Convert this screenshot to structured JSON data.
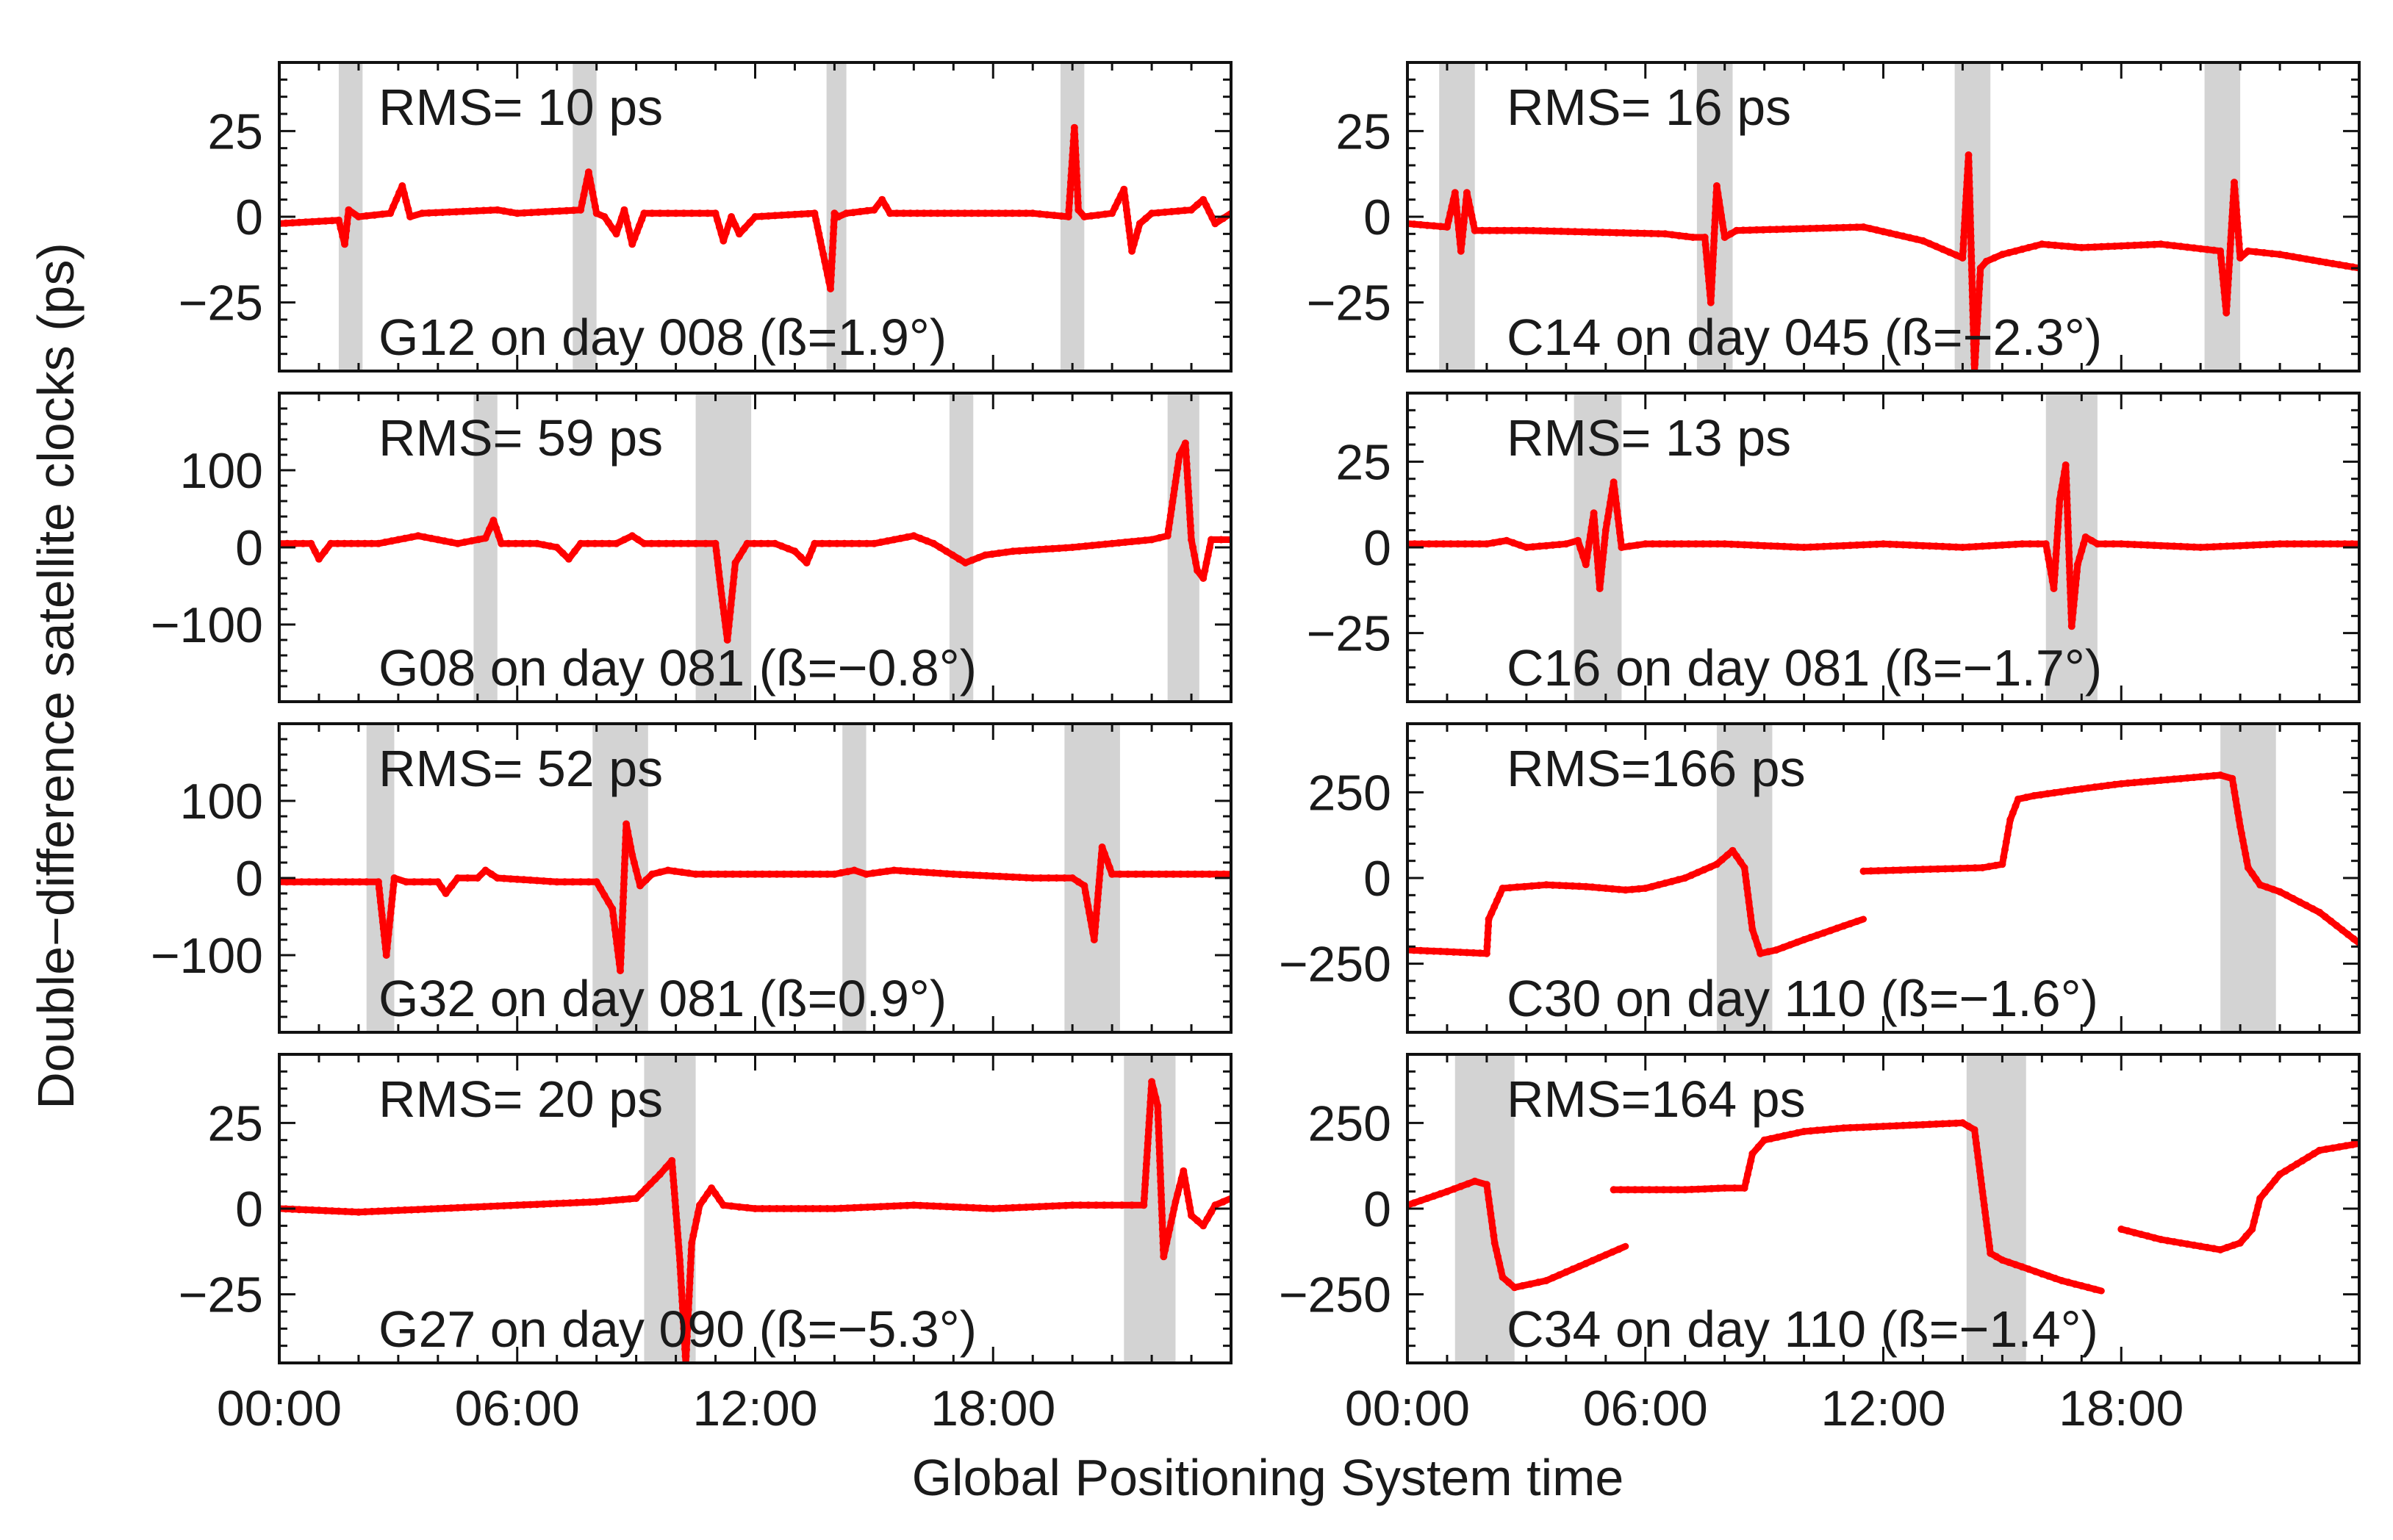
{
  "figure": {
    "ylabel": "Double−difference satellite clocks (ps)",
    "xlabel": "Global Positioning System time",
    "xtick_labels": [
      "00:00",
      "06:00",
      "12:00",
      "18:00"
    ],
    "line_color": "#ff0000",
    "eclipse_color": "#d3d3d3"
  },
  "chart_data": [
    {
      "type": "line",
      "id": "g12",
      "rms_label": "RMS= 10 ps",
      "caption": "G12 on day 008 (ß=1.9°)",
      "ylim": [
        -45,
        45
      ],
      "yticks": [
        -25,
        0,
        25
      ],
      "ytick_labels": [
        "−25",
        "0",
        "25"
      ],
      "xlim": [
        0,
        24
      ],
      "eclipse_bands": [
        [
          1.5,
          2.1
        ],
        [
          7.4,
          8.0
        ],
        [
          13.8,
          14.3
        ],
        [
          19.7,
          20.3
        ]
      ],
      "series": [
        {
          "name": "G12",
          "x": [
            0,
            1.5,
            1.65,
            1.75,
            2.0,
            2.8,
            3.1,
            3.3,
            3.6,
            5.5,
            6.0,
            7.6,
            7.8,
            8.0,
            8.2,
            8.5,
            8.7,
            8.9,
            9.2,
            10.0,
            11.0,
            11.2,
            11.4,
            11.6,
            12.0,
            13.5,
            13.9,
            14.0,
            14.1,
            14.3,
            15.0,
            15.2,
            15.4,
            19.0,
            19.9,
            20.05,
            20.15,
            20.3,
            21.0,
            21.3,
            21.5,
            21.7,
            22.0,
            23.0,
            23.3,
            23.6,
            24.0
          ],
          "y": [
            -2,
            -1,
            -8,
            2,
            0,
            1,
            9,
            0,
            1,
            2,
            1,
            2,
            13,
            1,
            0,
            -5,
            2,
            -8,
            1,
            1,
            1,
            -7,
            0,
            -5,
            0,
            1,
            -21,
            1,
            0,
            1,
            2,
            5,
            1,
            1,
            0,
            26,
            2,
            0,
            1,
            8,
            -10,
            -2,
            1,
            2,
            5,
            -2,
            1
          ]
        }
      ]
    },
    {
      "type": "line",
      "id": "c14",
      "rms_label": "RMS= 16 ps",
      "caption": "C14 on day 045 (ß=−2.3°)",
      "ylim": [
        -45,
        45
      ],
      "yticks": [
        -25,
        0,
        25
      ],
      "ytick_labels": [
        "−25",
        "0",
        "25"
      ],
      "xlim": [
        0,
        24
      ],
      "eclipse_bands": [
        [
          0.8,
          1.7
        ],
        [
          7.3,
          8.2
        ],
        [
          13.8,
          14.7
        ],
        [
          20.1,
          21.0
        ]
      ],
      "series": [
        {
          "name": "C14",
          "x": [
            0,
            1.0,
            1.2,
            1.35,
            1.5,
            1.7,
            3.0,
            6.5,
            7.2,
            7.5,
            7.65,
            7.8,
            8.0,
            8.3,
            11.5,
            13.0,
            14.0,
            14.15,
            14.3,
            14.45,
            14.6,
            15.0,
            16.0,
            17.0,
            19.0,
            20.5,
            20.65,
            20.85,
            21.0,
            21.2,
            22.0,
            23.0,
            24.0
          ],
          "y": [
            -2,
            -3,
            7,
            -10,
            7,
            -4,
            -4,
            -5,
            -6,
            -6,
            -25,
            9,
            -6,
            -4,
            -3,
            -7,
            -12,
            18,
            -45,
            -15,
            -13,
            -11,
            -8,
            -9,
            -8,
            -10,
            -28,
            10,
            -12,
            -10,
            -11,
            -13,
            -15
          ]
        }
      ]
    },
    {
      "type": "line",
      "id": "g08",
      "rms_label": "RMS= 59 ps",
      "caption": "G08 on day 081 (ß=−0.8°)",
      "ylim": [
        -200,
        200
      ],
      "yticks": [
        -100,
        0,
        100
      ],
      "ytick_labels": [
        "−100",
        "0",
        "100"
      ],
      "xlim": [
        0,
        24
      ],
      "eclipse_bands": [
        [
          4.9,
          5.5
        ],
        [
          10.5,
          11.9
        ],
        [
          16.9,
          17.5
        ],
        [
          22.4,
          23.2
        ]
      ],
      "series": [
        {
          "name": "G08",
          "x": [
            0,
            0.8,
            1.0,
            1.3,
            2.5,
            3.5,
            4.5,
            5.2,
            5.4,
            5.6,
            6.5,
            7.0,
            7.3,
            7.6,
            8.5,
            8.9,
            9.2,
            10.5,
            11.0,
            11.15,
            11.3,
            11.5,
            11.8,
            12.5,
            13.0,
            13.3,
            13.5,
            15.0,
            16.0,
            16.5,
            17.3,
            17.8,
            18.5,
            20.0,
            22.0,
            22.4,
            22.7,
            22.85,
            23.0,
            23.15,
            23.3,
            23.5,
            24.0
          ],
          "y": [
            5,
            5,
            -15,
            5,
            5,
            15,
            5,
            12,
            35,
            5,
            5,
            0,
            -15,
            5,
            5,
            15,
            5,
            5,
            5,
            -60,
            -120,
            -20,
            5,
            5,
            -5,
            -20,
            5,
            5,
            15,
            5,
            -20,
            -10,
            -5,
            0,
            10,
            15,
            120,
            135,
            10,
            -30,
            -40,
            10,
            10
          ]
        }
      ]
    },
    {
      "type": "line",
      "id": "c16",
      "rms_label": "RMS= 13 ps",
      "caption": "C16 on day 081 (ß=−1.7°)",
      "ylim": [
        -45,
        45
      ],
      "yticks": [
        -25,
        0,
        25
      ],
      "ytick_labels": [
        "−25",
        "0",
        "25"
      ],
      "xlim": [
        0,
        24
      ],
      "eclipse_bands": [
        [
          4.2,
          5.4
        ],
        [
          16.1,
          17.4
        ]
      ],
      "series": [
        {
          "name": "C16",
          "x": [
            0,
            2.0,
            2.5,
            3.0,
            4.0,
            4.3,
            4.5,
            4.7,
            4.85,
            5.0,
            5.2,
            5.4,
            6.0,
            8.0,
            10.0,
            12.0,
            14.0,
            15.5,
            16.1,
            16.3,
            16.45,
            16.6,
            16.75,
            16.9,
            17.1,
            17.4,
            18.0,
            20.0,
            22.0,
            24.0
          ],
          "y": [
            1,
            1,
            2,
            0,
            1,
            2,
            -5,
            10,
            -12,
            5,
            19,
            0,
            1,
            1,
            0,
            1,
            0,
            1,
            1,
            -12,
            14,
            24,
            -23,
            -5,
            3,
            1,
            1,
            0,
            1,
            1
          ]
        }
      ]
    },
    {
      "type": "line",
      "id": "g32",
      "rms_label": "RMS= 52 ps",
      "caption": "G32 on day 081 (ß=0.9°)",
      "ylim": [
        -200,
        200
      ],
      "yticks": [
        -100,
        0,
        100
      ],
      "ytick_labels": [
        "−100",
        "0",
        "100"
      ],
      "xlim": [
        0,
        24
      ],
      "eclipse_bands": [
        [
          2.2,
          2.9
        ],
        [
          7.9,
          9.3
        ],
        [
          14.2,
          14.8
        ],
        [
          19.8,
          21.2
        ]
      ],
      "series": [
        {
          "name": "G32",
          "x": [
            0,
            1.5,
            2.2,
            2.5,
            2.7,
            2.9,
            3.2,
            4.0,
            4.2,
            4.5,
            5.0,
            5.2,
            5.5,
            7.0,
            8.0,
            8.4,
            8.6,
            8.75,
            8.9,
            9.1,
            9.4,
            9.8,
            10.5,
            12.0,
            14.0,
            14.5,
            14.8,
            15.5,
            17.0,
            19.0,
            20.0,
            20.3,
            20.55,
            20.75,
            21.0,
            22.0,
            24.0
          ],
          "y": [
            -5,
            -5,
            -5,
            -5,
            -100,
            0,
            -5,
            -5,
            -20,
            0,
            0,
            10,
            0,
            -5,
            -5,
            -40,
            -120,
            70,
            30,
            -10,
            5,
            10,
            5,
            5,
            5,
            10,
            5,
            10,
            5,
            0,
            0,
            -10,
            -80,
            40,
            5,
            5,
            5
          ]
        }
      ]
    },
    {
      "type": "line",
      "id": "c30",
      "rms_label": "RMS=166 ps",
      "caption": "C30 on day 110 (ß=−1.6°)",
      "ylim": [
        -450,
        450
      ],
      "yticks": [
        -250,
        0,
        250
      ],
      "ytick_labels": [
        "−250",
        "0",
        "250"
      ],
      "xlim": [
        0,
        24
      ],
      "eclipse_bands": [
        [
          7.8,
          9.2
        ],
        [
          20.5,
          21.9
        ]
      ],
      "series": [
        {
          "name": "C30 arc 1",
          "x": [
            0,
            1.0,
            2.0,
            2.05,
            2.4,
            3.5,
            4.5,
            5.5,
            6.0,
            7.0,
            7.8,
            8.2,
            8.5,
            8.7,
            8.9,
            9.3,
            10.0,
            11.0,
            11.5
          ],
          "y": [
            -210,
            -215,
            -220,
            -120,
            -30,
            -20,
            -25,
            -35,
            -30,
            0,
            40,
            80,
            30,
            -150,
            -220,
            -210,
            -180,
            -140,
            -120
          ]
        },
        {
          "name": "C30 arc 2",
          "x": [
            11.5,
            13.0,
            14.5,
            15.0,
            15.2,
            15.4,
            15.8,
            17.0,
            18.0,
            19.0,
            20.0,
            20.5,
            20.8,
            21.0,
            21.2,
            21.5,
            22.0,
            23.0,
            24.0
          ],
          "y": [
            20,
            25,
            30,
            40,
            170,
            230,
            240,
            260,
            275,
            285,
            295,
            300,
            290,
            150,
            30,
            -20,
            -40,
            -100,
            -190
          ]
        }
      ]
    },
    {
      "type": "line",
      "id": "g27",
      "rms_label": "RMS= 20 ps",
      "caption": "G27 on day 090 (ß=−5.3°)",
      "ylim": [
        -45,
        45
      ],
      "yticks": [
        -25,
        0,
        25
      ],
      "ytick_labels": [
        "−25",
        "0",
        "25"
      ],
      "xlim": [
        0,
        24
      ],
      "eclipse_bands": [
        [
          9.2,
          10.5
        ],
        [
          21.3,
          22.6
        ]
      ],
      "series": [
        {
          "name": "G27",
          "x": [
            0,
            2.0,
            4.0,
            6.0,
            8.0,
            9.0,
            9.6,
            9.9,
            10.1,
            10.25,
            10.4,
            10.6,
            10.9,
            11.2,
            12.0,
            14.0,
            16.0,
            18.0,
            20.0,
            21.0,
            21.5,
            21.8,
            22.0,
            22.15,
            22.3,
            22.6,
            22.8,
            23.0,
            23.3,
            23.6,
            24.0
          ],
          "y": [
            0,
            -1,
            0,
            1,
            2,
            3,
            10,
            14,
            -15,
            -45,
            -10,
            1,
            6,
            1,
            0,
            0,
            1,
            0,
            1,
            1,
            1,
            1,
            37,
            30,
            -14,
            2,
            11,
            -2,
            -5,
            1,
            3
          ]
        }
      ]
    },
    {
      "type": "line",
      "id": "c34",
      "rms_label": "RMS=164 ps",
      "caption": "C34 on day 110 (ß=−1.4°)",
      "ylim": [
        -450,
        450
      ],
      "yticks": [
        -250,
        0,
        250
      ],
      "ytick_labels": [
        "−250",
        "0",
        "250"
      ],
      "xlim": [
        0,
        24
      ],
      "eclipse_bands": [
        [
          1.2,
          2.7
        ],
        [
          14.1,
          15.6
        ]
      ],
      "series": [
        {
          "name": "C34 arc 1",
          "x": [
            0,
            1.0,
            1.7,
            2.0,
            2.2,
            2.4,
            2.7,
            3.5,
            4.5,
            5.5
          ],
          "y": [
            10,
            50,
            80,
            70,
            -100,
            -200,
            -230,
            -210,
            -160,
            -110
          ]
        },
        {
          "name": "C34 arc 2",
          "x": [
            5.2,
            7.0,
            8.0,
            8.5,
            8.7,
            9.0,
            10.0,
            11.0,
            12.0,
            13.0,
            14.0,
            14.3,
            14.5,
            14.7,
            15.0,
            15.5,
            16.5,
            17.5
          ],
          "y": [
            55,
            55,
            60,
            60,
            160,
            200,
            225,
            235,
            240,
            245,
            250,
            230,
            50,
            -130,
            -150,
            -170,
            -210,
            -240
          ]
        },
        {
          "name": "C34 arc 3",
          "x": [
            18.0,
            19.0,
            20.0,
            20.5,
            21.0,
            21.3,
            21.5,
            22.0,
            23.0,
            24.0
          ],
          "y": [
            -60,
            -90,
            -110,
            -120,
            -100,
            -60,
            30,
            100,
            170,
            190
          ]
        }
      ]
    }
  ]
}
